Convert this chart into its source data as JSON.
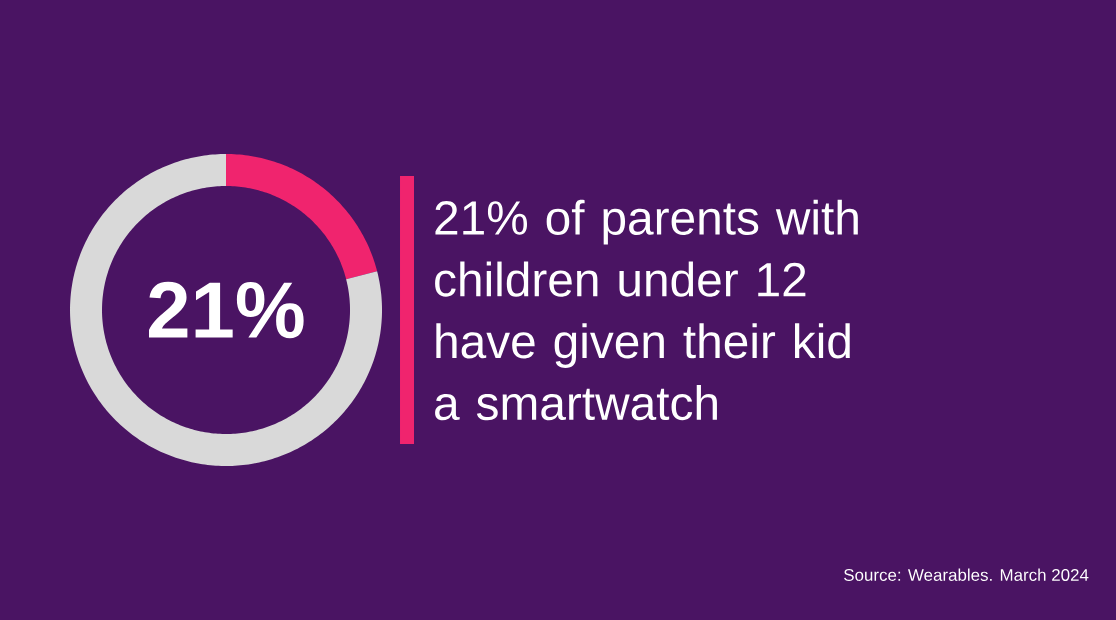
{
  "chart_data": {
    "type": "donut",
    "title": "21% of parents with children under 12 have given their kid a smartwatch",
    "categories": [
      null,
      null
    ],
    "values": [
      21,
      79
    ],
    "colors": [
      "#f0246e",
      "#d9d9d9"
    ],
    "value_labels": [
      "21%",
      null
    ],
    "annotations": [
      "Source: Wearables. March 2024"
    ]
  }
}
